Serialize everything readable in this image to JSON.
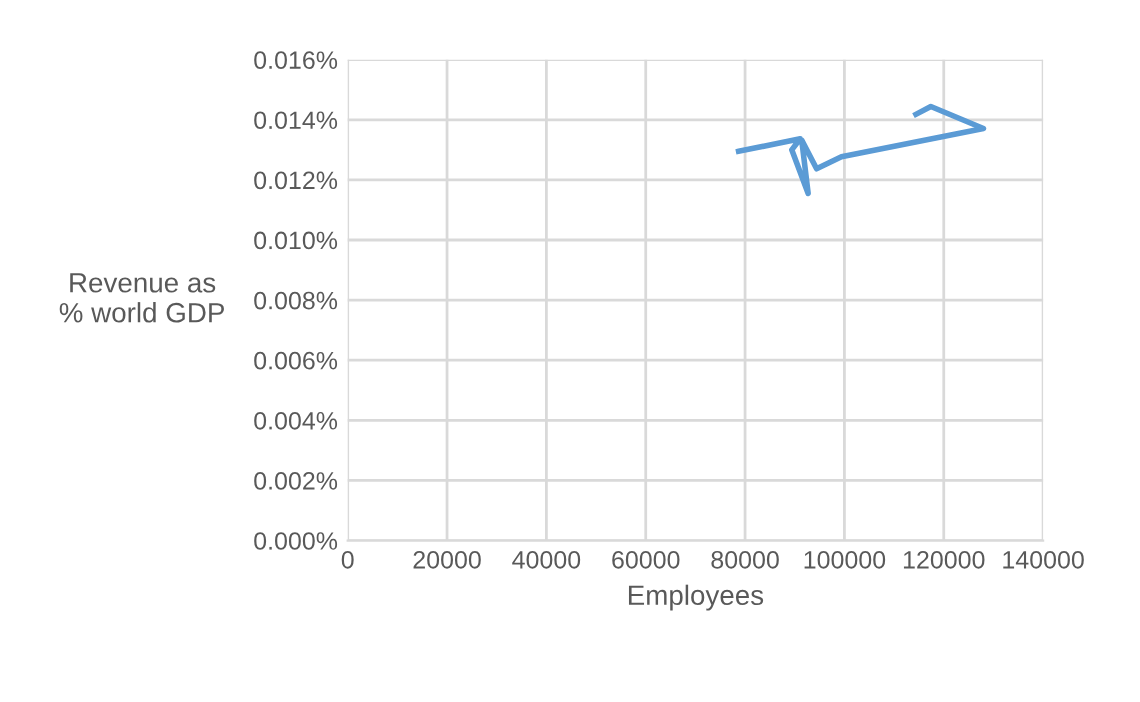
{
  "chart_data": {
    "type": "line",
    "xlabel": "Employees",
    "ylabel": "Revenue as\n% world GDP",
    "series": [
      {
        "color": "#5b9bd5",
        "x": [
          78700,
          91100,
          89400,
          92700,
          91400,
          94400,
          99400,
          128000,
          117400,
          114400
        ],
        "values": [
          0.01295,
          0.01337,
          0.013,
          0.01155,
          0.01333,
          0.01237,
          0.01277,
          0.01371,
          0.01444,
          0.01418
        ]
      }
    ],
    "xlim": [
      0,
      140000
    ],
    "xticks": [
      0,
      20000,
      40000,
      60000,
      80000,
      100000,
      120000,
      140000
    ],
    "ylim": [
      0,
      0.016
    ],
    "yticks": [
      {
        "value": 0,
        "label": "0.000%"
      },
      {
        "value": 0.002,
        "label": "0.002%"
      },
      {
        "value": 0.004,
        "label": "0.004%"
      },
      {
        "value": 0.006,
        "label": "0.006%"
      },
      {
        "value": 0.008,
        "label": "0.008%"
      },
      {
        "value": 0.01,
        "label": "0.010%"
      },
      {
        "value": 0.012,
        "label": "0.012%"
      },
      {
        "value": 0.014,
        "label": "0.014%"
      },
      {
        "value": 0.016,
        "label": "0.016%"
      }
    ],
    "grid": true,
    "marker": "none",
    "line_style": "solid"
  }
}
